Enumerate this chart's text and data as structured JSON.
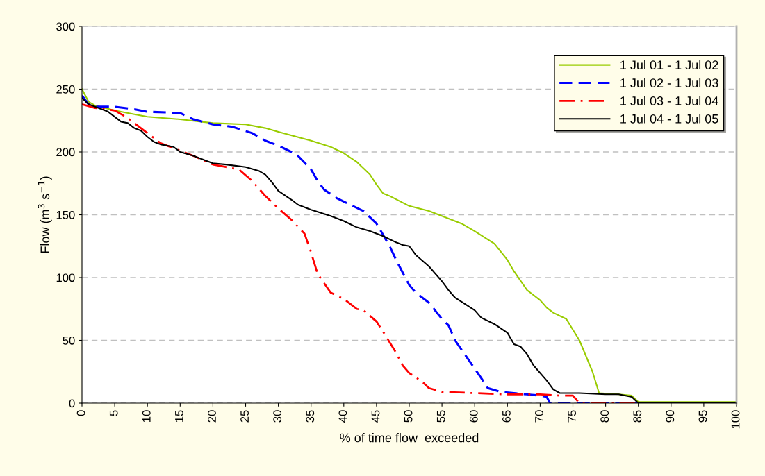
{
  "chart_data": {
    "type": "line",
    "xlabel": "% of time flow  exceeded",
    "ylabel": "Flow (m$^{3}$ s$^{−1}$)",
    "xlim": [
      0,
      100
    ],
    "xticks": [
      0,
      5,
      10,
      15,
      20,
      25,
      30,
      35,
      40,
      45,
      50,
      55,
      60,
      65,
      70,
      75,
      80,
      85,
      90,
      95,
      100
    ],
    "ylim": [
      0,
      300
    ],
    "yticks": [
      0,
      50,
      100,
      150,
      200,
      250,
      300
    ],
    "grid": "y",
    "legend": "top right",
    "series": [
      {
        "name": "1 Jul 01 - 1 Jul 02",
        "color": "#99cc00",
        "line_style": "solid",
        "x": [
          0,
          1,
          2,
          5,
          8,
          10,
          15,
          20,
          25,
          28,
          30,
          35,
          38,
          40,
          42,
          44,
          45,
          46,
          47,
          50,
          53,
          56,
          58,
          60,
          63,
          65,
          66,
          68,
          70,
          71,
          72,
          74,
          76,
          78,
          79,
          82,
          84,
          85,
          100
        ],
        "values": [
          250,
          240,
          237,
          233,
          230,
          228,
          226,
          223,
          222,
          219,
          216,
          209,
          204,
          199,
          192,
          182,
          174,
          167,
          165,
          157,
          153,
          147,
          143,
          137,
          127,
          114,
          105,
          90,
          82,
          76,
          72,
          67,
          50,
          25,
          8,
          7,
          6,
          1,
          1
        ]
      },
      {
        "name": "1 Jul 02 - 1 Jul 03",
        "color": "#0000ff",
        "line_style": "dashed",
        "x": [
          0,
          1,
          2,
          5,
          8,
          10,
          15,
          17,
          20,
          23,
          26,
          28,
          30,
          32,
          33,
          35,
          36,
          37,
          39,
          41,
          43,
          45,
          47,
          48,
          50,
          51,
          53,
          55,
          56,
          57,
          59,
          61,
          62,
          64,
          66,
          68,
          70,
          71,
          71.5,
          100
        ],
        "values": [
          245,
          238,
          236,
          236,
          234,
          232,
          231,
          226,
          222,
          220,
          215,
          209,
          205,
          200,
          197,
          186,
          177,
          170,
          163,
          158,
          153,
          143,
          125,
          114,
          94,
          88,
          80,
          67,
          62,
          50,
          35,
          20,
          12,
          9,
          8,
          7,
          6,
          5,
          0,
          0
        ]
      },
      {
        "name": "1 Jul 03 - 1 Jul 04",
        "color": "#ff0000",
        "line_style": "dashdot",
        "x": [
          0,
          2,
          5,
          7,
          10,
          12,
          15,
          17,
          20,
          22,
          24,
          26,
          28,
          30,
          32,
          34,
          35,
          36,
          38,
          40,
          42,
          43,
          45,
          46,
          48,
          49,
          50,
          52,
          53,
          55,
          60,
          65,
          70,
          73,
          75,
          76,
          100
        ],
        "values": [
          238,
          235,
          233,
          227,
          215,
          207,
          201,
          197,
          190,
          188,
          186,
          177,
          165,
          155,
          146,
          135,
          120,
          103,
          88,
          83,
          75,
          74,
          65,
          57,
          40,
          30,
          24,
          17,
          12,
          9,
          8,
          7,
          7,
          6,
          6,
          0,
          0
        ]
      },
      {
        "name": "1 Jul 04 - 1 Jul 05",
        "color": "#000000",
        "line_style": "solid",
        "x": [
          0,
          1,
          2,
          4,
          5,
          6,
          7,
          8,
          9,
          10,
          11,
          12,
          14,
          15,
          17,
          19,
          20,
          22,
          25,
          27,
          28,
          29,
          30,
          32,
          33,
          35,
          38,
          40,
          42,
          44,
          46,
          48,
          49,
          50,
          51,
          53,
          55,
          56,
          57,
          60,
          61,
          63,
          65,
          66,
          67,
          68,
          69,
          71,
          72,
          73,
          76,
          80,
          82,
          84,
          85,
          100
        ],
        "values": [
          243,
          238,
          236,
          232,
          228,
          224,
          223,
          219,
          217,
          212,
          208,
          206,
          204,
          200,
          197,
          193,
          191,
          190,
          188,
          185,
          182,
          176,
          169,
          162,
          158,
          154,
          149,
          145,
          140,
          137,
          133,
          128,
          126,
          125,
          118,
          109,
          97,
          90,
          84,
          74,
          68,
          63,
          56,
          47,
          45,
          39,
          30,
          18,
          11,
          8,
          8,
          7,
          7,
          5,
          0,
          0
        ]
      }
    ]
  }
}
